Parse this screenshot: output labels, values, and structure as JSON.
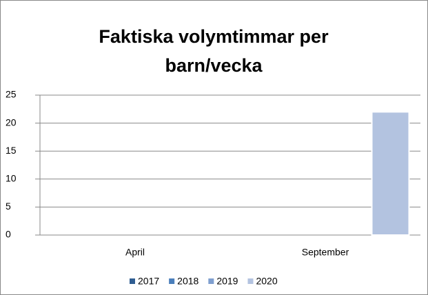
{
  "chart_data": {
    "type": "bar",
    "title": "Faktiska volymtimmar per barn/vecka",
    "categories": [
      "April",
      "September"
    ],
    "series": [
      {
        "name": "2017",
        "color": "#2f5d91",
        "values": [
          null,
          null
        ]
      },
      {
        "name": "2018",
        "color": "#4a7ebb",
        "values": [
          null,
          null
        ]
      },
      {
        "name": "2019",
        "color": "#7f9fcf",
        "values": [
          null,
          null
        ]
      },
      {
        "name": "2020",
        "color": "#b3c3e0",
        "values": [
          null,
          22
        ]
      }
    ],
    "ylim": [
      0,
      25
    ],
    "yticks": [
      0,
      5,
      10,
      15,
      20,
      25
    ],
    "grid": true,
    "legend": "bottom"
  }
}
